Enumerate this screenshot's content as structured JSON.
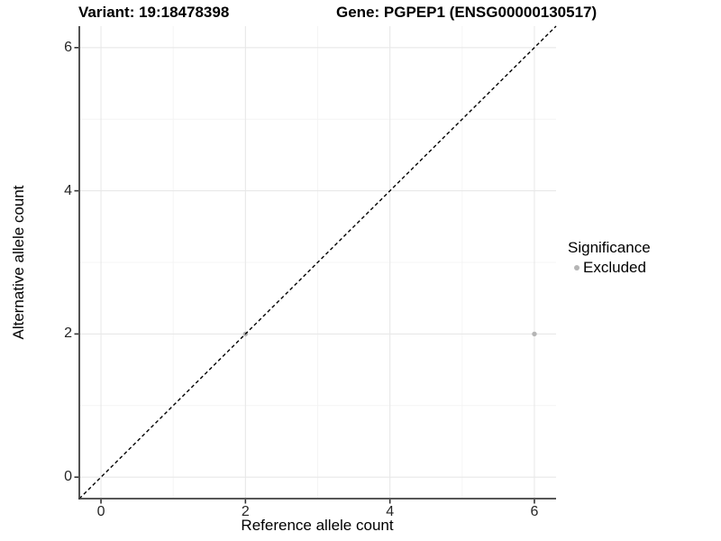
{
  "figure": {
    "title_left": "Variant: 19:18478398",
    "title_right": "Gene: PGPEP1 (ENSG00000130517)"
  },
  "chart_data": {
    "type": "scatter",
    "xlabel": "Reference allele count",
    "ylabel": "Alternative allele count",
    "xlim": [
      -0.3,
      6.3
    ],
    "ylim": [
      -0.3,
      6.3
    ],
    "xticks": [
      0,
      2,
      4,
      6
    ],
    "yticks": [
      0,
      2,
      4,
      6
    ],
    "xticks_minor": [
      1,
      3,
      5
    ],
    "yticks_minor": [
      1,
      3,
      5
    ],
    "grid": true,
    "series": [
      {
        "name": "Excluded",
        "color": "#b5b5b5",
        "points": [
          {
            "x": 2,
            "y": 2
          },
          {
            "x": 6,
            "y": 2
          }
        ]
      }
    ],
    "reference_line": {
      "type": "identity",
      "slope": 1,
      "intercept": 0,
      "style": "dashed",
      "color": "#000000"
    },
    "legend": {
      "title": "Significance",
      "position": "right",
      "items": [
        {
          "label": "Excluded",
          "color": "#b5b5b5"
        }
      ]
    }
  },
  "colors": {
    "background": "#ffffff",
    "grid_major": "#e8e8e8",
    "grid_minor": "#f4f4f4",
    "axis_line": "#3f3f3f",
    "tick_mark": "#333333",
    "tick_label": "#262626",
    "title_text": "#000000"
  }
}
